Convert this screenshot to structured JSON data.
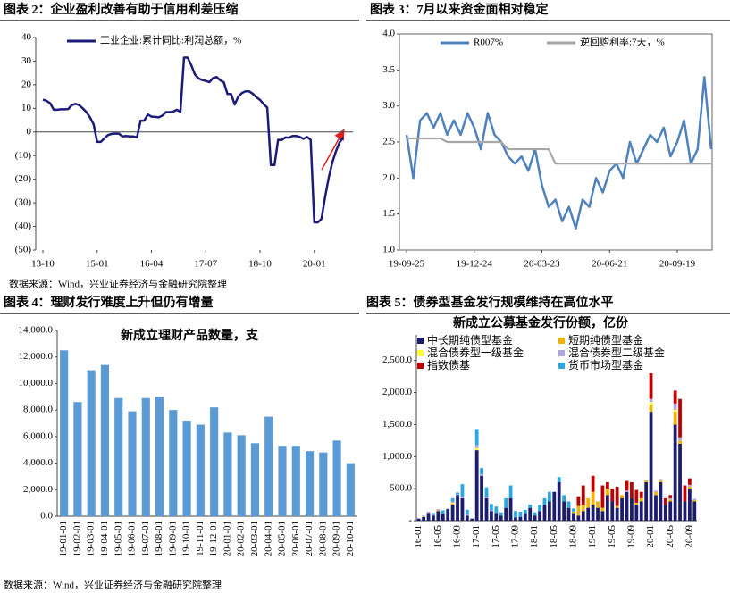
{
  "chart_data": [
    {
      "type": "line",
      "title": "图表 2：企业盈利改善有助于信用利差压缩",
      "x": [
        "13-10",
        "13-11",
        "13-12",
        "14-01",
        "14-02",
        "14-03",
        "14-04",
        "14-05",
        "14-06",
        "14-07",
        "14-08",
        "14-09",
        "14-10",
        "14-11",
        "14-12",
        "15-01",
        "15-02",
        "15-03",
        "15-04",
        "15-05",
        "15-06",
        "15-07",
        "15-08",
        "15-09",
        "15-10",
        "15-11",
        "15-12",
        "16-01",
        "16-02",
        "16-03",
        "16-04",
        "16-05",
        "16-06",
        "16-07",
        "16-08",
        "16-09",
        "16-10",
        "16-11",
        "16-12",
        "17-01",
        "17-02",
        "17-03",
        "17-04",
        "17-05",
        "17-06",
        "17-07",
        "17-08",
        "17-09",
        "17-10",
        "17-11",
        "17-12",
        "18-01",
        "18-02",
        "18-03",
        "18-04",
        "18-05",
        "18-06",
        "18-07",
        "18-08",
        "18-09",
        "18-10",
        "18-11",
        "18-12",
        "19-01",
        "19-02",
        "19-03",
        "19-04",
        "19-05",
        "19-06",
        "19-07",
        "19-08",
        "19-09",
        "19-10",
        "19-11",
        "19-12",
        "20-01",
        "20-02",
        "20-03",
        "20-04",
        "20-05",
        "20-06",
        "20-07",
        "20-08",
        "20-09"
      ],
      "xticks": [
        "13-10",
        "15-01",
        "16-04",
        "17-07",
        "18-10",
        "20-01"
      ],
      "series": [
        {
          "name": "工业企业:累计同比:利润总额，%",
          "color": "#1c1c78",
          "values": [
            13.7,
            13.2,
            12.2,
            9.4,
            9.4,
            9.6,
            9.6,
            9.7,
            11.4,
            11.9,
            11.4,
            10.0,
            8.5,
            6.2,
            3.3,
            -4.2,
            -4.2,
            -2.7,
            -1.3,
            -0.8,
            -0.7,
            -0.7,
            -1.9,
            -1.7,
            -1.9,
            -1.9,
            -2.3,
            4.8,
            4.8,
            7.4,
            6.5,
            6.4,
            6.2,
            6.9,
            8.4,
            8.4,
            8.6,
            9.4,
            8.5,
            31.5,
            31.5,
            28.3,
            24.4,
            22.7,
            22.0,
            21.6,
            21.1,
            22.8,
            23.3,
            21.9,
            21.0,
            16.1,
            16.1,
            11.6,
            15.0,
            16.5,
            17.2,
            17.2,
            16.2,
            14.7,
            13.6,
            11.8,
            10.3,
            -14.0,
            -14.0,
            -3.3,
            -3.4,
            -2.3,
            -2.4,
            -1.7,
            -1.7,
            -2.1,
            -2.9,
            -2.1,
            -3.3,
            -38.3,
            -38.3,
            -36.7,
            -27.4,
            -19.3,
            -12.8,
            -8.1,
            -4.4,
            -2.4
          ]
        }
      ],
      "ylim": [
        -50,
        40
      ],
      "yticks": [
        40,
        30,
        20,
        10,
        0,
        {
          "value": -10,
          "label": "(10)"
        },
        {
          "value": -20,
          "label": "(20)"
        },
        {
          "value": -30,
          "label": "(30)"
        },
        {
          "value": -40,
          "label": "(40)"
        },
        {
          "value": -50,
          "label": "(50)"
        }
      ]
    },
    {
      "type": "line",
      "title": "图表 3：7月以来资金面相对稳定",
      "x": [
        "19-09-25",
        "19-10-04",
        "19-10-13",
        "19-10-22",
        "19-10-31",
        "19-11-09",
        "19-11-18",
        "19-11-27",
        "19-12-06",
        "19-12-15",
        "19-12-24",
        "20-01-02",
        "20-01-11",
        "20-01-20",
        "20-01-29",
        "20-02-07",
        "20-02-16",
        "20-02-25",
        "20-03-05",
        "20-03-14",
        "20-03-23",
        "20-04-01",
        "20-04-10",
        "20-04-19",
        "20-04-28",
        "20-05-07",
        "20-05-16",
        "20-05-25",
        "20-06-03",
        "20-06-12",
        "20-06-21",
        "20-06-30",
        "20-07-09",
        "20-07-18",
        "20-07-27",
        "20-08-05",
        "20-08-14",
        "20-08-23",
        "20-09-01",
        "20-09-10",
        "20-09-19",
        "20-09-28",
        "20-10-07",
        "20-10-16",
        "20-10-25",
        "20-11-03"
      ],
      "xticks": [
        "19-09-25",
        "19-12-24",
        "20-03-23",
        "20-06-21",
        "20-09-19"
      ],
      "series": [
        {
          "name": "R007%",
          "color": "#4f81bd",
          "values": [
            2.6,
            2.0,
            2.8,
            2.9,
            2.7,
            2.9,
            2.6,
            2.8,
            2.6,
            2.9,
            2.7,
            2.4,
            2.9,
            2.6,
            2.5,
            2.3,
            2.2,
            2.3,
            2.1,
            2.4,
            1.9,
            1.6,
            1.7,
            1.4,
            1.6,
            1.3,
            1.7,
            1.6,
            2.0,
            1.8,
            2.1,
            2.2,
            2.0,
            2.5,
            2.2,
            2.4,
            2.6,
            2.5,
            2.7,
            2.3,
            2.5,
            2.8,
            2.2,
            2.4,
            3.4,
            2.4
          ]
        },
        {
          "name": "逆回购利率:7天，%",
          "color": "#a6a6a6",
          "values": [
            2.55,
            2.55,
            2.55,
            2.55,
            2.55,
            2.55,
            2.5,
            2.5,
            2.5,
            2.5,
            2.5,
            2.5,
            2.5,
            2.5,
            2.5,
            2.4,
            2.4,
            2.4,
            2.4,
            2.4,
            2.4,
            2.4,
            2.2,
            2.2,
            2.2,
            2.2,
            2.2,
            2.2,
            2.2,
            2.2,
            2.2,
            2.2,
            2.2,
            2.2,
            2.2,
            2.2,
            2.2,
            2.2,
            2.2,
            2.2,
            2.2,
            2.2,
            2.2,
            2.2,
            2.2,
            2.2
          ]
        }
      ],
      "ylim": [
        1,
        4
      ],
      "yticks": [
        {
          "value": 1,
          "label": "1.0"
        },
        {
          "value": 1.5,
          "label": "1.5"
        },
        {
          "value": 2,
          "label": "2.0"
        },
        {
          "value": 2.5,
          "label": "2.5"
        },
        {
          "value": 3,
          "label": "3.0"
        },
        {
          "value": 3.5,
          "label": "3.5"
        },
        {
          "value": 4,
          "label": "4.0"
        }
      ]
    },
    {
      "type": "bar",
      "title": "图表 4：理财发行难度上升但仍有增量",
      "subtitle": "新成立理财产品数量，支",
      "categories": [
        "19-01-01",
        "19-02-01",
        "19-03-01",
        "19-04-01",
        "19-05-01",
        "19-06-01",
        "19-07-01",
        "19-08-01",
        "19-09-01",
        "19-10-01",
        "19-11-01",
        "19-12-01",
        "20-01-01",
        "20-02-01",
        "20-03-01",
        "20-04-01",
        "20-05-01",
        "20-06-01",
        "20-07-01",
        "20-08-01",
        "20-09-01",
        "20-10-01"
      ],
      "values": [
        12500,
        8600,
        11000,
        11400,
        8900,
        7900,
        8900,
        9000,
        8000,
        7200,
        6900,
        8200,
        6300,
        6100,
        5500,
        7500,
        5300,
        5300,
        4900,
        4800,
        5700,
        4000
      ],
      "color": "#5b9bd5",
      "ylim": [
        0,
        14000
      ],
      "yticks": [
        {
          "value": 0,
          "label": "0.0"
        },
        {
          "value": 2000,
          "label": "2,000.0"
        },
        {
          "value": 4000,
          "label": "4,000.0"
        },
        {
          "value": 6000,
          "label": "6,000.0"
        },
        {
          "value": 8000,
          "label": "8,000.0"
        },
        {
          "value": 10000,
          "label": "10,000.0"
        },
        {
          "value": 12000,
          "label": "12,000.0"
        },
        {
          "value": 14000,
          "label": "14,000.0"
        }
      ]
    },
    {
      "type": "stacked-bar",
      "title": "图表 5：债券型基金发行规模维持在高位水平",
      "subtitle": "新成立公募基金发行份额，亿份",
      "categories": [
        "16-01",
        null,
        null,
        null,
        "16-05",
        null,
        null,
        null,
        "16-09",
        null,
        null,
        null,
        "17-01",
        null,
        null,
        null,
        "17-05",
        null,
        null,
        null,
        "17-09",
        null,
        null,
        null,
        "18-01",
        null,
        null,
        null,
        "18-05",
        null,
        null,
        null,
        "18-09",
        null,
        null,
        null,
        "19-01",
        null,
        null,
        null,
        "19-05",
        null,
        null,
        null,
        "19-09",
        null,
        null,
        null,
        "20-01",
        null,
        null,
        null,
        "20-05",
        null,
        null,
        null,
        "20-09",
        null
      ],
      "series": [
        {
          "name": "中长期纯债型基金",
          "color": "#1c1c6e",
          "values": [
            30,
            60,
            120,
            80,
            150,
            100,
            180,
            250,
            400,
            350,
            80,
            30,
            1100,
            700,
            350,
            150,
            120,
            80,
            200,
            350,
            50,
            60,
            120,
            200,
            80,
            150,
            250,
            300,
            450,
            600,
            300,
            200,
            120,
            80,
            150,
            200,
            250,
            200,
            150,
            400,
            300,
            200,
            350,
            450,
            350,
            250,
            300,
            600,
            1700,
            400,
            600,
            250,
            300,
            1500,
            1200,
            300,
            500,
            300
          ]
        },
        {
          "name": "短期纯债型基金",
          "color": "#f0b400",
          "values": [
            0,
            0,
            0,
            0,
            10,
            0,
            0,
            20,
            0,
            0,
            0,
            0,
            0,
            0,
            0,
            0,
            0,
            0,
            0,
            0,
            0,
            0,
            0,
            0,
            0,
            0,
            0,
            0,
            0,
            0,
            0,
            0,
            20,
            150,
            100,
            150,
            200,
            100,
            50,
            100,
            0,
            30,
            50,
            0,
            0,
            30,
            50,
            20,
            100,
            50,
            20,
            0,
            30,
            200,
            50,
            0,
            30,
            20
          ]
        },
        {
          "name": "混合债券型一级基金",
          "color": "#ffff33",
          "values": [
            0,
            10,
            0,
            0,
            0,
            0,
            0,
            10,
            0,
            0,
            0,
            0,
            30,
            0,
            0,
            0,
            0,
            0,
            0,
            0,
            0,
            0,
            0,
            0,
            0,
            0,
            0,
            0,
            0,
            0,
            0,
            0,
            0,
            0,
            0,
            0,
            0,
            0,
            0,
            0,
            0,
            0,
            0,
            0,
            0,
            0,
            0,
            0,
            50,
            0,
            0,
            0,
            0,
            30,
            0,
            0,
            0,
            0
          ]
        },
        {
          "name": "混合债券型二级基金",
          "color": "#b3a6e0",
          "values": [
            10,
            10,
            20,
            10,
            20,
            10,
            10,
            20,
            10,
            20,
            10,
            10,
            50,
            20,
            20,
            10,
            0,
            0,
            0,
            0,
            0,
            0,
            0,
            0,
            0,
            0,
            0,
            0,
            0,
            0,
            0,
            0,
            0,
            0,
            0,
            0,
            0,
            0,
            0,
            0,
            0,
            0,
            0,
            20,
            0,
            0,
            0,
            20,
            50,
            20,
            30,
            0,
            20,
            100,
            50,
            0,
            30,
            20
          ]
        },
        {
          "name": "指数债基",
          "color": "#c00000",
          "values": [
            0,
            0,
            0,
            0,
            0,
            0,
            0,
            0,
            0,
            0,
            0,
            0,
            0,
            0,
            0,
            0,
            0,
            0,
            0,
            0,
            0,
            0,
            0,
            0,
            0,
            0,
            0,
            0,
            0,
            0,
            0,
            0,
            0,
            150,
            300,
            0,
            250,
            0,
            350,
            100,
            200,
            300,
            0,
            150,
            250,
            200,
            100,
            0,
            400,
            0,
            0,
            100,
            50,
            200,
            600,
            250,
            100,
            0
          ]
        },
        {
          "name": "货币市场型基金",
          "color": "#29a9e0",
          "values": [
            0,
            0,
            0,
            30,
            0,
            50,
            0,
            50,
            30,
            200,
            80,
            0,
            250,
            100,
            150,
            100,
            100,
            50,
            150,
            200,
            100,
            80,
            50,
            50,
            50,
            100,
            100,
            150,
            0,
            80,
            100,
            100,
            50,
            0,
            0,
            0,
            0,
            0,
            0,
            0,
            0,
            0,
            0,
            0,
            0,
            0,
            0,
            0,
            0,
            0,
            0,
            0,
            0,
            0,
            0,
            0,
            0,
            0
          ]
        }
      ],
      "ylim": [
        0,
        2900
      ],
      "yticks": [
        {
          "value": 0,
          "label": "-"
        },
        {
          "value": 500,
          "label": "500.0"
        },
        {
          "value": 1000,
          "label": "1,000.0"
        },
        {
          "value": 1500,
          "label": "1,500.0"
        },
        {
          "value": 2000,
          "label": "2,000.0"
        },
        {
          "value": 2500,
          "label": "2,500.0"
        }
      ]
    }
  ],
  "sources": [
    "数据来源：Wind，兴业证券经济与金融研究院整理",
    "数据来源：Wind，兴业证券经济与金融研究院整理"
  ]
}
